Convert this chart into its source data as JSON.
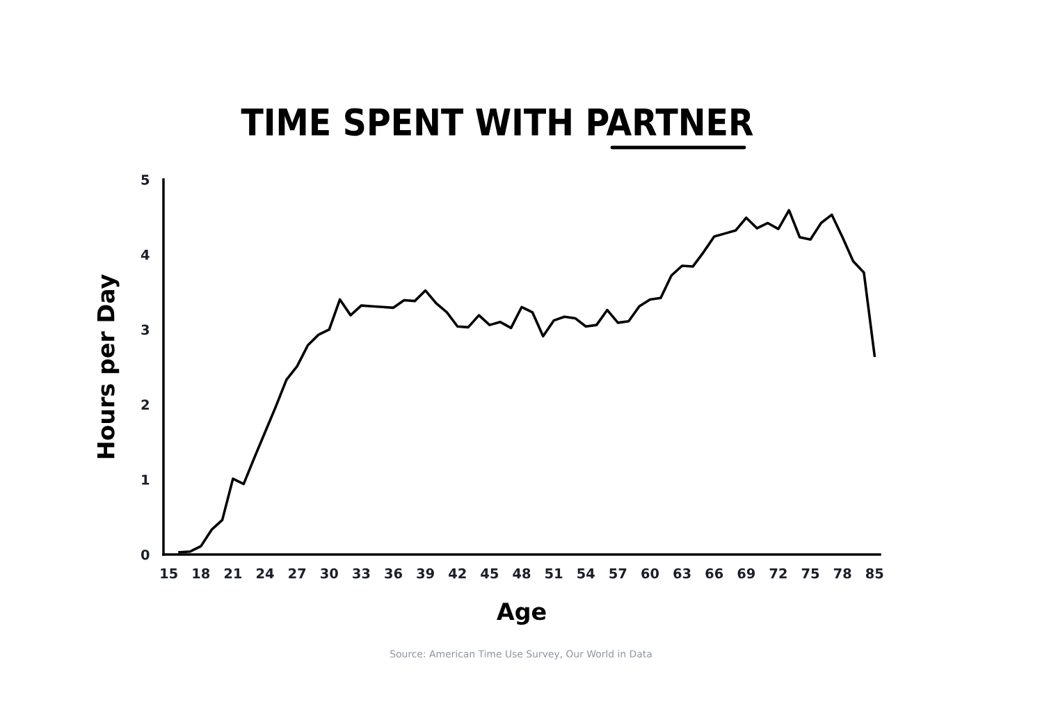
{
  "chart_data": {
    "type": "line",
    "title": "TIME SPENT WITH PARTNER",
    "xlabel": "Age",
    "ylabel": "Hours per Day",
    "categories": [
      "15",
      null,
      null,
      "18",
      null,
      null,
      "21",
      null,
      null,
      "24",
      null,
      null,
      "27",
      null,
      null,
      "30",
      null,
      null,
      "33",
      null,
      null,
      "36",
      null,
      null,
      "39",
      null,
      null,
      "42",
      null,
      null,
      "45",
      null,
      null,
      "48",
      null,
      null,
      "51",
      null,
      null,
      "54",
      null,
      null,
      "57",
      null,
      null,
      "60",
      null,
      null,
      "63",
      null,
      null,
      "66",
      null,
      null,
      "69",
      null,
      null,
      "72",
      null,
      null,
      "75",
      null,
      null,
      "78",
      null,
      null,
      "85"
    ],
    "series": [
      {
        "color": "#000000",
        "values": [
          null,
          0.03,
          0.04,
          0.11,
          0.33,
          0.46,
          1.01,
          0.94,
          1.29,
          1.63,
          1.97,
          2.33,
          2.51,
          2.79,
          2.93,
          3.0,
          3.4,
          3.19,
          3.32,
          3.31,
          3.3,
          3.29,
          3.39,
          3.38,
          3.52,
          3.35,
          3.23,
          3.04,
          3.03,
          3.19,
          3.06,
          3.1,
          3.02,
          3.3,
          3.23,
          2.91,
          3.12,
          3.17,
          3.15,
          3.04,
          3.06,
          3.26,
          3.09,
          3.11,
          3.31,
          3.4,
          3.42,
          3.72,
          3.85,
          3.84,
          4.03,
          4.24,
          4.28,
          4.32,
          4.49,
          4.35,
          4.42,
          4.34,
          4.59,
          4.23,
          4.2,
          4.42,
          4.53,
          4.23,
          3.91,
          3.76,
          2.65
        ]
      }
    ],
    "ylim": [
      0,
      5
    ],
    "yticks": [
      0,
      1,
      2,
      3,
      4,
      5
    ],
    "grid": false,
    "legend": false,
    "marker": "none",
    "line_style": "solid",
    "annotations": [
      "Source: American Time Use Survey, Our World in Data"
    ]
  }
}
